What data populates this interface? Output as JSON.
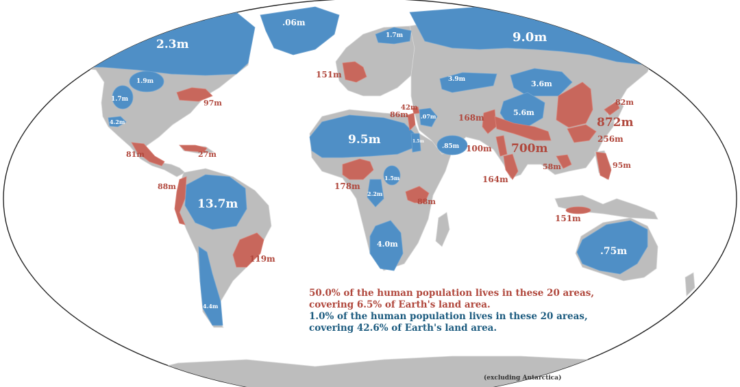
{
  "colors": {
    "land": "#bdbdbd",
    "ocean": "#ffffff",
    "dense": "#c8675c",
    "sparse": "#4f8fc6",
    "red_text": "#b0473c",
    "white_text": "#ffffff",
    "blue_text": "#1c5b7f"
  },
  "dense_areas": [
    {
      "id": "eastern-us",
      "value": "97m"
    },
    {
      "id": "mexico",
      "value": "81m"
    },
    {
      "id": "caribbean",
      "value": "27m"
    },
    {
      "id": "andes",
      "value": "88m"
    },
    {
      "id": "southeast-brazil",
      "value": "119m"
    },
    {
      "id": "western-europe",
      "value": "151m"
    },
    {
      "id": "nile",
      "value": "86m"
    },
    {
      "id": "levant",
      "value": "42m"
    },
    {
      "id": "west-africa",
      "value": "178m"
    },
    {
      "id": "east-africa",
      "value": "88m"
    },
    {
      "id": "pakistan",
      "value": "168m"
    },
    {
      "id": "ganges",
      "value": "700m"
    },
    {
      "id": "deccan",
      "value": "100m"
    },
    {
      "id": "south-india",
      "value": "164m"
    },
    {
      "id": "china",
      "value": "872m"
    },
    {
      "id": "japan",
      "value": "82m"
    },
    {
      "id": "south-china",
      "value": "256m"
    },
    {
      "id": "vietnam",
      "value": "58m"
    },
    {
      "id": "philippines",
      "value": "95m"
    },
    {
      "id": "java",
      "value": "151m"
    }
  ],
  "sparse_areas": [
    {
      "id": "north-canada",
      "value": "2.3m"
    },
    {
      "id": "greenland",
      "value": ".06m"
    },
    {
      "id": "scandinavia",
      "value": "1.7m"
    },
    {
      "id": "siberia",
      "value": "9.0m"
    },
    {
      "id": "canada-prairies",
      "value": "1.9m"
    },
    {
      "id": "us-west",
      "value": "1.7m"
    },
    {
      "id": "baja",
      "value": "4.2m"
    },
    {
      "id": "sahara",
      "value": "9.5m"
    },
    {
      "id": "arabia-north",
      "value": ".07m"
    },
    {
      "id": "red-sea",
      "value": "1.5m"
    },
    {
      "id": "empty-quarter",
      "value": ".85m"
    },
    {
      "id": "kazakhstan",
      "value": "3.9m"
    },
    {
      "id": "mongolia",
      "value": "3.6m"
    },
    {
      "id": "tibet",
      "value": "5.6m"
    },
    {
      "id": "congo",
      "value": "2.2m"
    },
    {
      "id": "sudan",
      "value": "1.5m"
    },
    {
      "id": "kalahari",
      "value": "4.0m"
    },
    {
      "id": "amazon",
      "value": "13.7m"
    },
    {
      "id": "patagonia",
      "value": "4.4m"
    },
    {
      "id": "australia",
      "value": ".75m"
    }
  ],
  "legend": {
    "dense_line1": "50.0% of the human population lives in these 20 areas,",
    "dense_line2": "covering 6.5% of Earth's land area.",
    "sparse_line1": "1.0% of the human population lives in these 20 areas,",
    "sparse_line2": "covering 42.6% of Earth's land area."
  },
  "note": "(excluding Antarctica)"
}
